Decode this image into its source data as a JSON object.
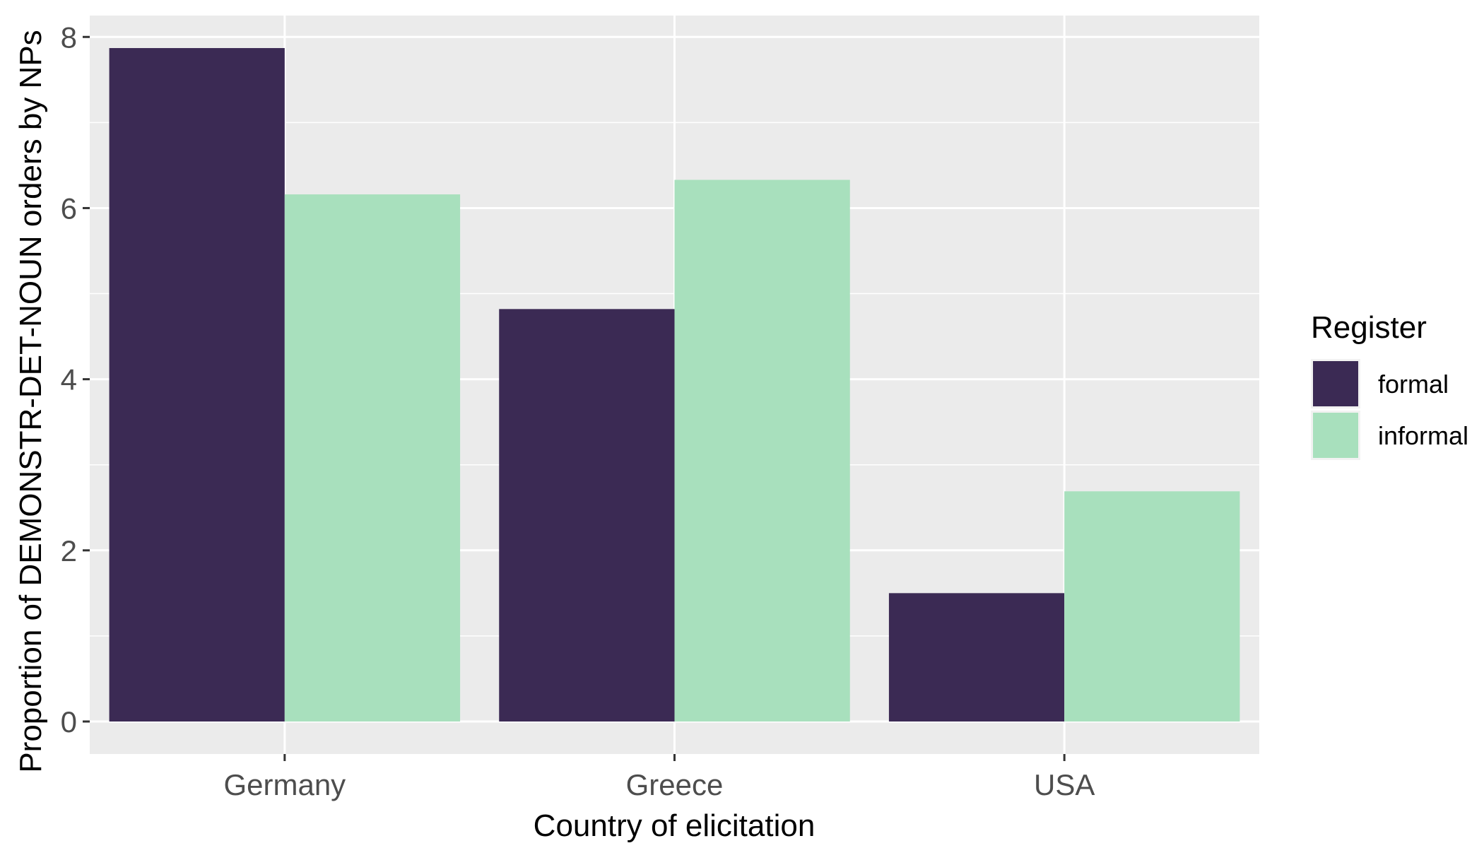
{
  "chart_data": {
    "type": "bar",
    "categories": [
      "Germany",
      "Greece",
      "USA"
    ],
    "series": [
      {
        "name": "formal",
        "values": [
          7.87,
          4.82,
          1.5
        ],
        "color": "#3b2a54"
      },
      {
        "name": "informal",
        "values": [
          6.16,
          6.33,
          2.69
        ],
        "color": "#a8e0bd"
      }
    ],
    "xlabel": "Country of elicitation",
    "ylabel": "Proportion of DEMONSTR-DET-NOUN orders by NPs",
    "ylim": [
      -0.38,
      8.25
    ],
    "yticks": [
      0,
      2,
      4,
      6,
      8
    ],
    "grid": true,
    "legend": {
      "title": "Register",
      "position": "right"
    },
    "colors": {
      "panel": "#ebebeb",
      "grid": "#ffffff",
      "tick": "#333333"
    }
  }
}
